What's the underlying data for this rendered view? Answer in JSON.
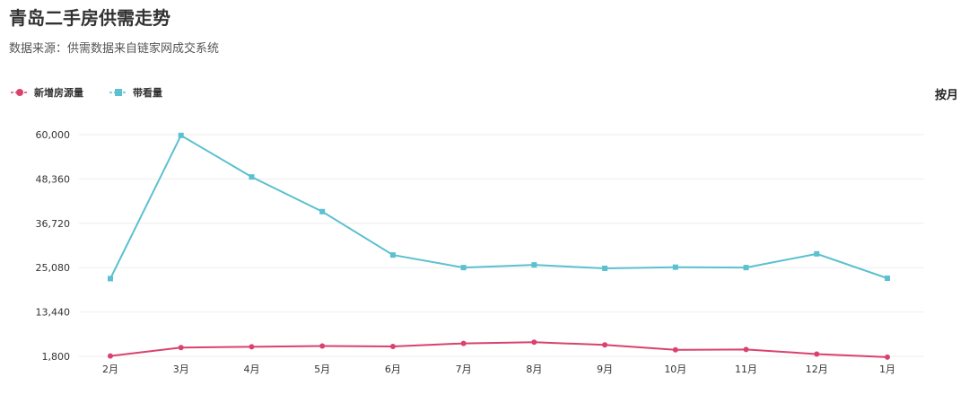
{
  "header": {
    "title": "青岛二手房供需走势",
    "subtitle": "数据来源：供需数据来自链家网成交系统"
  },
  "controls": {
    "period_toggle": "按月"
  },
  "colors": {
    "new_listings": "#d9426e",
    "viewings": "#5bc0cf",
    "grid": "#eeeeee",
    "axis_text": "#333333"
  },
  "chart_data": {
    "type": "line",
    "categories": [
      "2月",
      "3月",
      "4月",
      "5月",
      "6月",
      "7月",
      "8月",
      "9月",
      "10月",
      "11月",
      "12月",
      "1月"
    ],
    "series": [
      {
        "name": "新增房源量",
        "values": [
          1900,
          4100,
          4300,
          4500,
          4400,
          5200,
          5500,
          4800,
          3500,
          3600,
          2400,
          1600
        ]
      },
      {
        "name": "带看量",
        "values": [
          22200,
          59800,
          48900,
          39800,
          28400,
          25100,
          25800,
          24900,
          25200,
          25100,
          28700,
          22300
        ]
      }
    ],
    "yticks": [
      "60,000",
      "48,360",
      "36,720",
      "25,080",
      "13,440",
      "1,800"
    ],
    "ylim": [
      1800,
      60000
    ],
    "legend_position": "top-left",
    "grid": true
  }
}
